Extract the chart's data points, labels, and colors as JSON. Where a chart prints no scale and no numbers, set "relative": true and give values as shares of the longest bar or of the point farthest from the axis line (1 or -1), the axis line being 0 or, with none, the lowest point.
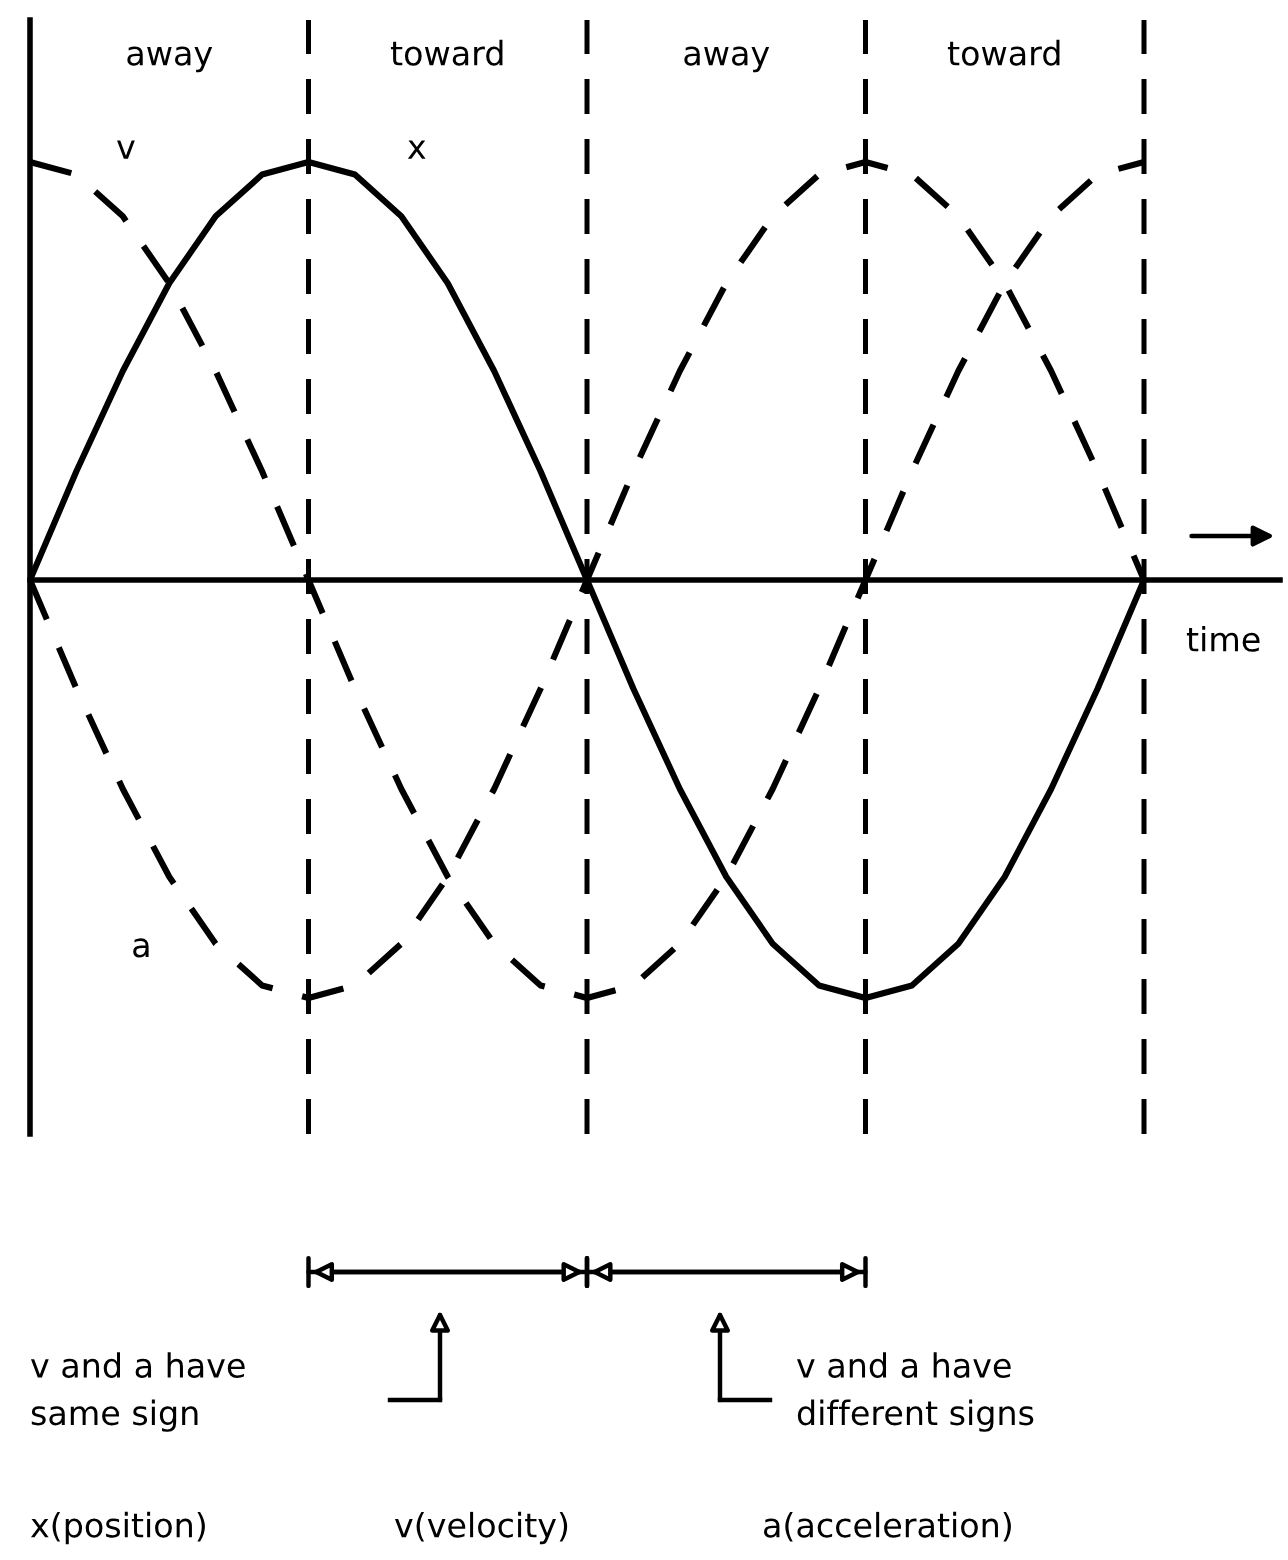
{
  "chart_data": {
    "type": "line",
    "relative": true,
    "grid": "x",
    "xlabel": "time",
    "categories": [
      null,
      null,
      null,
      null,
      null,
      null,
      null,
      null,
      null,
      null,
      null,
      null,
      null,
      null,
      null,
      null,
      null,
      null,
      null,
      null,
      null,
      null,
      null,
      null,
      null
    ],
    "series": [
      {
        "name": "x",
        "color": "#000000",
        "line_style": "solid",
        "values": [
          0,
          0.26,
          0.5,
          0.71,
          0.87,
          0.97,
          1,
          0.97,
          0.87,
          0.71,
          0.5,
          0.26,
          0,
          -0.26,
          -0.5,
          -0.71,
          -0.87,
          -0.97,
          -1,
          -0.97,
          -0.87,
          -0.71,
          -0.5,
          -0.26,
          0
        ]
      },
      {
        "name": "v",
        "color": "#000000",
        "line_style": "dashed",
        "values": [
          1,
          0.97,
          0.87,
          0.71,
          0.5,
          0.26,
          0,
          -0.26,
          -0.5,
          -0.71,
          -0.87,
          -0.97,
          -1,
          -0.97,
          -0.87,
          -0.71,
          -0.5,
          -0.26,
          0,
          0.26,
          0.5,
          0.71,
          0.87,
          0.97,
          1
        ]
      },
      {
        "name": "a",
        "color": "#000000",
        "line_style": "dashed",
        "values": [
          0,
          -0.26,
          -0.5,
          -0.71,
          -0.87,
          -0.97,
          -1,
          -0.97,
          -0.87,
          -0.71,
          -0.5,
          -0.26,
          0,
          0.26,
          0.5,
          0.71,
          0.87,
          0.97,
          1,
          0.97,
          0.87,
          0.71,
          0.5,
          0.26,
          0
        ]
      }
    ],
    "annotations": [
      "away",
      "toward",
      "away",
      "toward",
      "v and a have\nsame sign",
      "v and a have\ndifferent signs",
      "x(position)",
      "v(velocity)",
      "a(acceleration)"
    ]
  }
}
